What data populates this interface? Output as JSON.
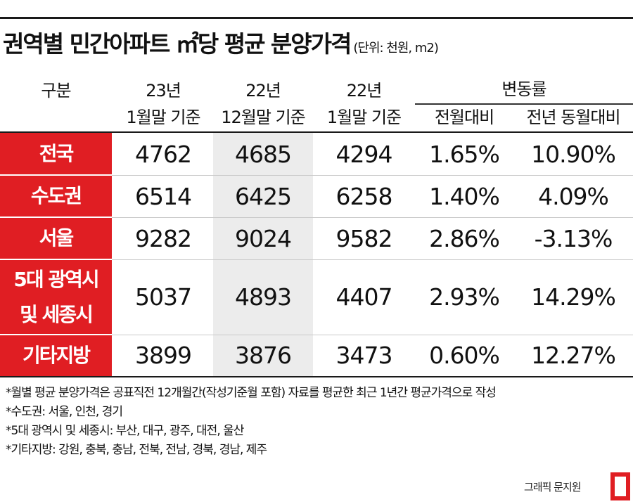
{
  "title": "권역별 민간아파트 ㎡당 평균 분양가격",
  "unit": "(단위: 천원, m2)",
  "headers": {
    "category": "구분",
    "col1": [
      "23년",
      "1월말 기준"
    ],
    "col2": [
      "22년",
      "12월말 기준"
    ],
    "col3": [
      "22년",
      "1월말 기준"
    ],
    "change_group": "변동률",
    "col4": "전월대비",
    "col5": "전년 동월대비"
  },
  "rows": [
    {
      "label": [
        "전국"
      ],
      "values": [
        "4762",
        "4685",
        "4294",
        "1.65%",
        "10.90%"
      ]
    },
    {
      "label": [
        "수도권"
      ],
      "values": [
        "6514",
        "6425",
        "6258",
        "1.40%",
        "4.09%"
      ]
    },
    {
      "label": [
        "서울"
      ],
      "values": [
        "9282",
        "9024",
        "9582",
        "2.86%",
        "-3.13%"
      ]
    },
    {
      "label": [
        "5대 광역시",
        "및 세종시"
      ],
      "values": [
        "5037",
        "4893",
        "4407",
        "2.93%",
        "14.29%"
      ]
    },
    {
      "label": [
        "기타지방"
      ],
      "values": [
        "3899",
        "3876",
        "3473",
        "0.60%",
        "12.27%"
      ]
    }
  ],
  "notes": [
    "*월별 평균 분양가격은 공표직전 12개월간(작성기준월 포함) 자료를 평균한 최근 1년간 평균가격으로 작성",
    "*수도권: 서울, 인천, 경기",
    "*5대 광역시 및 세종시: 부산, 대구, 광주, 대전, 울산",
    "*기타지방: 강원, 충북, 충남, 전북, 전남, 경북, 경남, 제주"
  ],
  "credit": "그래픽 문지원",
  "colors": {
    "accent": "#e01e23",
    "shade": "#ececec",
    "rule": "#1a1a1a"
  },
  "logo_icon": "bracket-logo-icon"
}
